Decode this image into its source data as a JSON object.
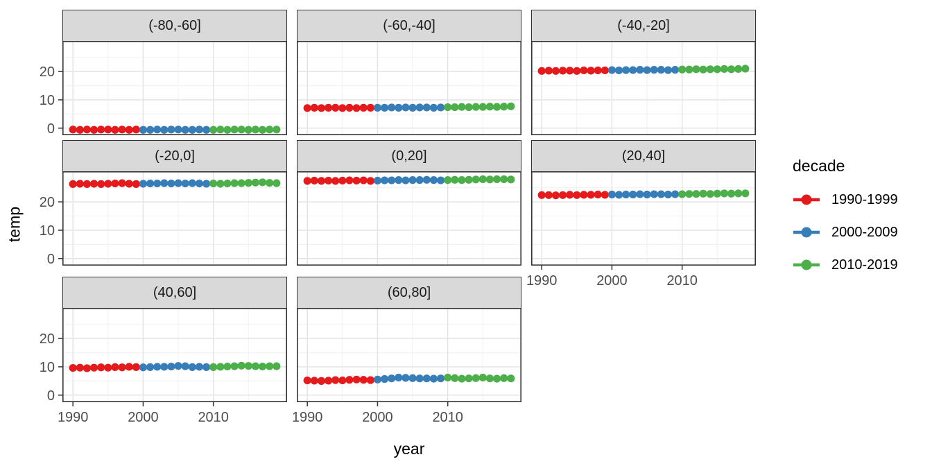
{
  "figure": {
    "xlabel": "year",
    "ylabel": "temp",
    "legend": {
      "title": "decade",
      "entries": [
        {
          "label": "1990-1999",
          "color": "#E41A1C"
        },
        {
          "label": "2000-2009",
          "color": "#377EB8"
        },
        {
          "label": "2010-2019",
          "color": "#4DAF4A"
        }
      ]
    }
  },
  "chart_data": {
    "type": "scatter",
    "title": "",
    "xlabel": "year",
    "ylabel": "temp",
    "legend_position": "right",
    "grid": true,
    "x": [
      1990,
      1991,
      1992,
      1993,
      1994,
      1995,
      1996,
      1997,
      1998,
      1999,
      2000,
      2001,
      2002,
      2003,
      2004,
      2005,
      2006,
      2007,
      2008,
      2009,
      2010,
      2011,
      2012,
      2013,
      2014,
      2015,
      2016,
      2017,
      2018,
      2019
    ],
    "x_ticks": [
      1990,
      2000,
      2010
    ],
    "x_minor_ticks": [
      1995,
      2005,
      2015
    ],
    "y_ticks": [
      0,
      10,
      20
    ],
    "y_minor_ticks": [
      5,
      15,
      25
    ],
    "xlim": [
      1988.5,
      2020.5
    ],
    "ylim": [
      -2.5,
      30.8
    ],
    "series_colors": {
      "1990-1999": "#E41A1C",
      "2000-2009": "#377EB8",
      "2010-2019": "#4DAF4A"
    },
    "facets": [
      {
        "label": "(-80,-60]",
        "row": 0,
        "col": 0,
        "temps": [
          -0.5,
          -0.6,
          -0.5,
          -0.6,
          -0.5,
          -0.5,
          -0.6,
          -0.5,
          -0.6,
          -0.5,
          -0.6,
          -0.6,
          -0.5,
          -0.6,
          -0.5,
          -0.5,
          -0.6,
          -0.6,
          -0.5,
          -0.6,
          -0.6,
          -0.5,
          -0.6,
          -0.5,
          -0.5,
          -0.6,
          -0.5,
          -0.6,
          -0.5,
          -0.5
        ]
      },
      {
        "label": "(-60,-40]",
        "row": 0,
        "col": 1,
        "temps": [
          7.1,
          7.2,
          7.1,
          7.2,
          7.2,
          7.1,
          7.2,
          7.1,
          7.2,
          7.2,
          7.2,
          7.2,
          7.3,
          7.2,
          7.3,
          7.2,
          7.3,
          7.3,
          7.2,
          7.3,
          7.4,
          7.4,
          7.5,
          7.4,
          7.5,
          7.5,
          7.6,
          7.5,
          7.6,
          7.7
        ]
      },
      {
        "label": "(-40,-20]",
        "row": 0,
        "col": 2,
        "temps": [
          20.2,
          20.3,
          20.2,
          20.3,
          20.3,
          20.2,
          20.4,
          20.3,
          20.4,
          20.4,
          20.5,
          20.4,
          20.5,
          20.5,
          20.6,
          20.5,
          20.6,
          20.6,
          20.5,
          20.6,
          20.7,
          20.7,
          20.8,
          20.7,
          20.8,
          20.8,
          20.9,
          20.8,
          20.9,
          21.0
        ]
      },
      {
        "label": "(-20,0]",
        "row": 1,
        "col": 0,
        "temps": [
          26.3,
          26.4,
          26.3,
          26.4,
          26.3,
          26.4,
          26.5,
          26.6,
          26.4,
          26.3,
          26.4,
          26.5,
          26.5,
          26.6,
          26.5,
          26.6,
          26.5,
          26.6,
          26.5,
          26.4,
          26.5,
          26.4,
          26.5,
          26.6,
          26.6,
          26.7,
          26.8,
          26.9,
          26.7,
          26.6
        ]
      },
      {
        "label": "(0,20]",
        "row": 1,
        "col": 1,
        "temps": [
          27.4,
          27.5,
          27.4,
          27.5,
          27.4,
          27.5,
          27.6,
          27.5,
          27.6,
          27.4,
          27.5,
          27.6,
          27.6,
          27.7,
          27.6,
          27.7,
          27.7,
          27.8,
          27.7,
          27.6,
          27.7,
          27.8,
          27.7,
          27.8,
          27.9,
          28.0,
          27.9,
          28.0,
          28.0,
          27.9
        ]
      },
      {
        "label": "(20,40]",
        "row": 1,
        "col": 2,
        "temps": [
          22.4,
          22.4,
          22.3,
          22.4,
          22.5,
          22.4,
          22.5,
          22.5,
          22.6,
          22.5,
          22.6,
          22.5,
          22.6,
          22.6,
          22.7,
          22.6,
          22.7,
          22.7,
          22.6,
          22.7,
          22.7,
          22.8,
          22.8,
          22.9,
          22.8,
          22.9,
          23.0,
          22.9,
          23.0,
          23.0
        ]
      },
      {
        "label": "(40,60]",
        "row": 2,
        "col": 0,
        "temps": [
          9.6,
          9.7,
          9.5,
          9.7,
          9.8,
          9.7,
          9.9,
          9.8,
          10.0,
          9.9,
          9.8,
          9.9,
          10.0,
          10.0,
          10.1,
          10.3,
          10.2,
          9.9,
          10.0,
          9.9,
          9.9,
          10.0,
          10.1,
          10.2,
          10.4,
          10.3,
          10.2,
          10.1,
          10.2,
          10.2
        ]
      },
      {
        "label": "(60,80]",
        "row": 2,
        "col": 1,
        "temps": [
          5.2,
          5.1,
          5.0,
          5.1,
          5.3,
          5.2,
          5.4,
          5.5,
          5.4,
          5.3,
          5.5,
          5.7,
          5.9,
          6.2,
          6.1,
          6.0,
          5.9,
          5.9,
          5.8,
          5.9,
          6.2,
          6.0,
          5.8,
          5.9,
          6.0,
          6.2,
          5.9,
          5.8,
          6.0,
          5.9
        ]
      }
    ]
  }
}
